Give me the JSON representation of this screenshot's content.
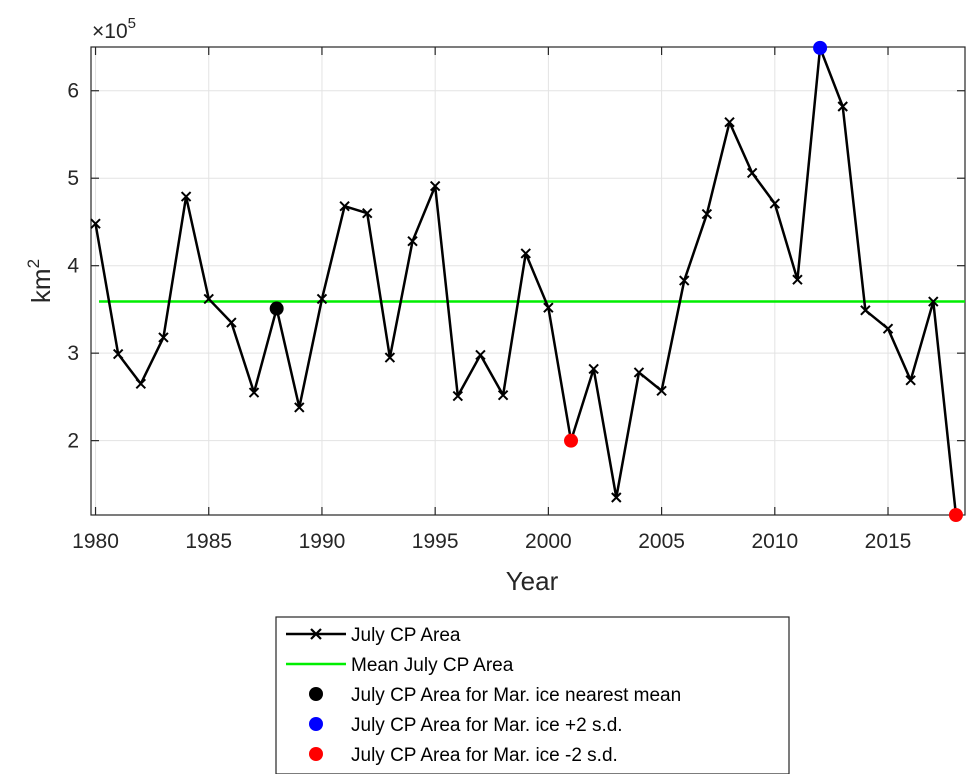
{
  "chart_data": {
    "type": "line",
    "xlabel": "Year",
    "ylabel": "km",
    "ylabel_superscript": "2",
    "y_exponent_prefix": "×10",
    "y_exponent_power": "5",
    "xlim": [
      1979.8,
      2018.4
    ],
    "ylim": [
      1.15,
      6.5
    ],
    "x_ticks": [
      1980,
      1985,
      1990,
      1995,
      2000,
      2005,
      2010,
      2015
    ],
    "y_ticks": [
      2,
      3,
      4,
      5,
      6
    ],
    "grid": true,
    "legend_position": "bottom-outside",
    "series": [
      {
        "name": "July CP Area",
        "kind": "line-x",
        "color": "#000000",
        "x": [
          1980,
          1981,
          1982,
          1983,
          1984,
          1985,
          1986,
          1987,
          1988,
          1989,
          1990,
          1991,
          1992,
          1993,
          1994,
          1995,
          1996,
          1997,
          1998,
          1999,
          2000,
          2001,
          2002,
          2003,
          2004,
          2005,
          2006,
          2007,
          2008,
          2009,
          2010,
          2011,
          2012,
          2013,
          2014,
          2015,
          2016,
          2017,
          2018
        ],
        "y": [
          4.48,
          2.99,
          2.65,
          3.18,
          4.79,
          3.62,
          3.35,
          2.55,
          3.51,
          2.38,
          3.62,
          4.68,
          4.6,
          2.95,
          4.28,
          4.91,
          2.51,
          2.98,
          2.52,
          4.14,
          3.52,
          2.0,
          2.82,
          1.35,
          2.78,
          2.57,
          3.83,
          4.59,
          5.64,
          5.06,
          4.71,
          3.84,
          6.49,
          5.82,
          3.49,
          3.28,
          2.69,
          3.59,
          1.15
        ]
      },
      {
        "name": "Mean July CP Area",
        "kind": "hline",
        "color": "#00ee00",
        "y": 3.59
      },
      {
        "name": "July CP Area for Mar. ice nearest mean",
        "kind": "marker",
        "color": "#000000",
        "x": [
          1988
        ],
        "y": [
          3.51
        ]
      },
      {
        "name": "July CP Area for Mar. ice +2 s.d.",
        "kind": "marker",
        "color": "#0000ff",
        "x": [
          2012
        ],
        "y": [
          6.49
        ]
      },
      {
        "name": "July CP Area for Mar. ice -2 s.d.",
        "kind": "marker",
        "color": "#ff0000",
        "x": [
          2001,
          2018
        ],
        "y": [
          2.0,
          1.15
        ]
      }
    ]
  }
}
